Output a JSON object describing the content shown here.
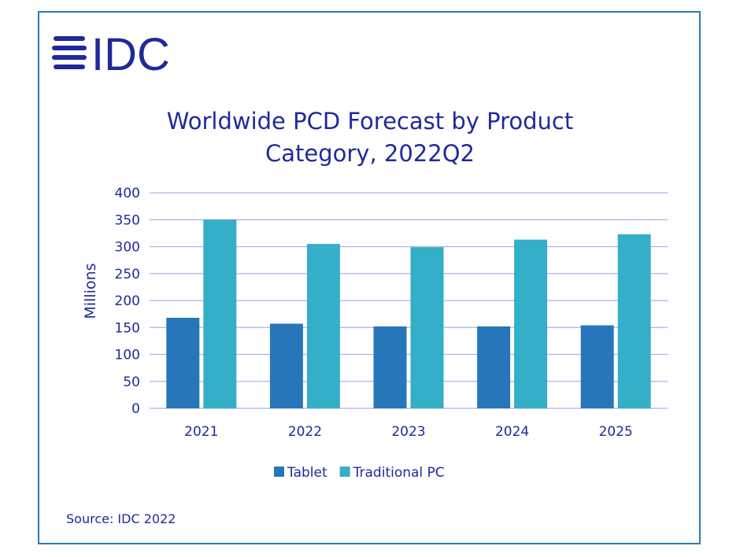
{
  "logo": {
    "text": "IDC",
    "color": "#1f2a9a"
  },
  "source": "Source: IDC 2022",
  "chart_data": {
    "type": "bar",
    "title": [
      "Worldwide PCD Forecast by Product",
      "Category, 2022Q2"
    ],
    "xlabel": "",
    "ylabel": "Millions",
    "ylim": [
      0,
      400
    ],
    "yticks": [
      0,
      50,
      100,
      150,
      200,
      250,
      300,
      350,
      400
    ],
    "grid": true,
    "legend_position": "bottom",
    "categories": [
      "2021",
      "2022",
      "2023",
      "2024",
      "2025"
    ],
    "series": [
      {
        "name": "Tablet",
        "color": "#2776b9",
        "values": [
          168,
          157,
          152,
          152,
          154
        ]
      },
      {
        "name": "Traditional PC",
        "color": "#35aec8",
        "values": [
          350,
          305,
          299,
          313,
          323
        ]
      }
    ]
  }
}
